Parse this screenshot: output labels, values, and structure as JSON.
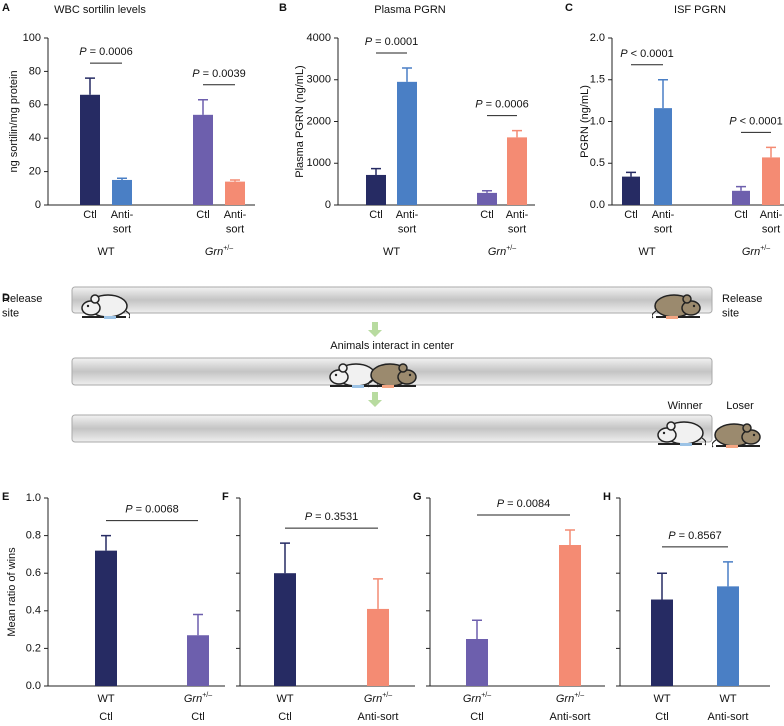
{
  "chart_data": [
    {
      "type": "bar",
      "panel": "A",
      "title": "WBC sortilin levels",
      "y_label": "ng sortilin/mg protein",
      "categories": [
        "Ctl",
        "Anti-sort",
        "Ctl",
        "Anti-sort"
      ],
      "groups": [
        "WT",
        "Grn+/–"
      ],
      "values": [
        66,
        15,
        54,
        14
      ],
      "errors": [
        10,
        1,
        9,
        1
      ],
      "colors": [
        "#262b63",
        "#4a7fc5",
        "#6d5fad",
        "#f48b73"
      ],
      "annotations": [
        "P = 0.0006",
        "P = 0.0039"
      ],
      "ylim": [
        0,
        100
      ],
      "yticks": [
        0,
        20,
        40,
        60,
        80,
        100
      ]
    },
    {
      "type": "bar",
      "panel": "B",
      "title": "Plasma PGRN",
      "y_label": "Plasma PGRN (ng/mL)",
      "categories": [
        "Ctl",
        "Anti-sort",
        "Ctl",
        "Anti-sort"
      ],
      "groups": [
        "WT",
        "Grn+/–"
      ],
      "values": [
        720,
        2950,
        290,
        1620
      ],
      "errors": [
        150,
        330,
        50,
        160
      ],
      "colors": [
        "#262b63",
        "#4a7fc5",
        "#6d5fad",
        "#f48b73"
      ],
      "annotations": [
        "P = 0.0001",
        "P = 0.0006"
      ],
      "ylim": [
        0,
        4000
      ],
      "yticks": [
        0,
        1000,
        2000,
        3000,
        4000
      ]
    },
    {
      "type": "bar",
      "panel": "C",
      "title": "ISF PGRN",
      "y_label": "PGRN (ng/mL)",
      "categories": [
        "Ctl",
        "Anti-sort",
        "Ctl",
        "Anti-sort"
      ],
      "groups": [
        "WT",
        "Grn+/–"
      ],
      "values": [
        0.34,
        1.16,
        0.17,
        0.57
      ],
      "errors": [
        0.05,
        0.34,
        0.05,
        0.12
      ],
      "colors": [
        "#262b63",
        "#4a7fc5",
        "#6d5fad",
        "#f48b73"
      ],
      "annotations": [
        "P < 0.0001",
        "P < 0.0001"
      ],
      "ylim": [
        0,
        2
      ],
      "yticks": [
        {
          "value": 0,
          "label": "0.0"
        },
        0.5,
        {
          "value": 1,
          "label": "1.0"
        },
        1.5,
        {
          "value": 2,
          "label": "2.0"
        }
      ]
    },
    {
      "type": "bar",
      "panel": "E",
      "y_label": "Mean ratio of wins",
      "categories": [
        "WT",
        "Grn+/–"
      ],
      "subcategories": [
        "Ctl",
        "Ctl"
      ],
      "values": [
        0.72,
        0.27
      ],
      "errors": [
        0.08,
        0.11
      ],
      "colors": [
        "#262b63",
        "#6d5fad"
      ],
      "annotations": [
        "P = 0.0068"
      ],
      "ylim": [
        0,
        1
      ],
      "yticks": [
        {
          "value": 0,
          "label": "0.0"
        },
        0.2,
        0.4,
        0.6,
        0.8,
        {
          "value": 1,
          "label": "1.0"
        }
      ]
    },
    {
      "type": "bar",
      "panel": "F",
      "categories": [
        "WT",
        "Grn+/–"
      ],
      "subcategories": [
        "Ctl",
        "Anti-sort"
      ],
      "values": [
        0.6,
        0.41
      ],
      "errors": [
        0.16,
        0.16
      ],
      "colors": [
        "#262b63",
        "#f48b73"
      ],
      "annotations": [
        "P = 0.3531"
      ],
      "ylim": [
        0,
        1
      ],
      "yticks": [
        0,
        0.2,
        0.4,
        0.6,
        0.8,
        1
      ],
      "ytick_labels": false
    },
    {
      "type": "bar",
      "panel": "G",
      "categories": [
        "Grn+/–",
        "Grn+/–"
      ],
      "subcategories": [
        "Ctl",
        "Anti-sort"
      ],
      "values": [
        0.25,
        0.75
      ],
      "errors": [
        0.1,
        0.08
      ],
      "colors": [
        "#6d5fad",
        "#f48b73"
      ],
      "annotations": [
        "P = 0.0084"
      ],
      "ylim": [
        0,
        1
      ],
      "yticks": [
        0,
        0.2,
        0.4,
        0.6,
        0.8,
        1
      ],
      "ytick_labels": false
    },
    {
      "type": "bar",
      "panel": "H",
      "categories": [
        "WT",
        "WT"
      ],
      "subcategories": [
        "Ctl",
        "Anti-sort"
      ],
      "values": [
        0.46,
        0.53
      ],
      "errors": [
        0.14,
        0.13
      ],
      "colors": [
        "#262b63",
        "#4a7fc5"
      ],
      "annotations": [
        "P = 0.8567"
      ],
      "ylim": [
        0,
        1
      ],
      "yticks": [
        0,
        0.2,
        0.4,
        0.6,
        0.8,
        1
      ],
      "ytick_labels": false
    }
  ],
  "diagram": {
    "panel": "D",
    "left_label": "Release site",
    "right_label": "Release site",
    "center_label": "Animals interact in center",
    "winner_label": "Winner",
    "loser_label": "Loser"
  }
}
